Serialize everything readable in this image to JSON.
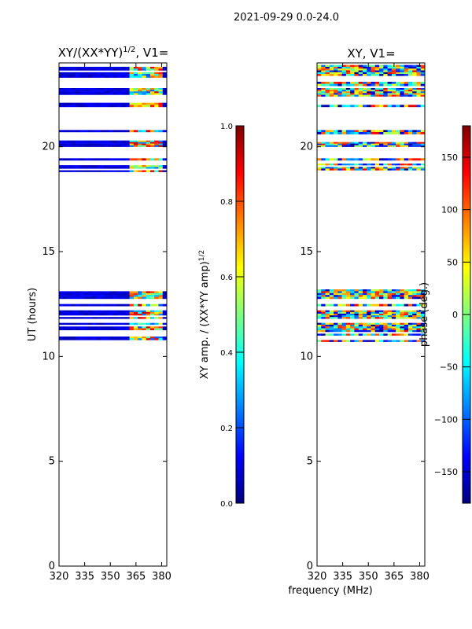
{
  "suptitle": "2021-09-29 0.0-24.0",
  "colors": {
    "jet": [
      "#00007f",
      "#0000ff",
      "#007fff",
      "#00ffff",
      "#7fff7f",
      "#ffff00",
      "#ff7f00",
      "#ff0000",
      "#7f0000"
    ],
    "axis": "#000000",
    "background": "#ffffff"
  },
  "chart_data": [
    {
      "type": "heatmap",
      "panel": "left",
      "title_main": "XY/(XX*YY)",
      "title_sup": "1/2",
      "title_tail": ", V1=",
      "xlabel": "",
      "ylabel": "UT (hours)",
      "xlim": [
        320,
        383
      ],
      "ylim": [
        0,
        24
      ],
      "xticks": [
        320,
        335,
        350,
        365,
        380
      ],
      "yticks": [
        0,
        5,
        10,
        15,
        20
      ],
      "colorbar": {
        "label_main": "XY amp. / (XX*YY amp)",
        "label_sup": "1/2",
        "range": [
          0.0,
          1.0
        ],
        "ticks": [
          "0.0",
          "0.2",
          "0.4",
          "0.6",
          "0.8",
          "1.0"
        ],
        "tick_values": [
          0.0,
          0.2,
          0.4,
          0.6,
          0.8,
          1.0
        ]
      },
      "data_bands_ut": [
        [
          23.3,
          23.9
        ],
        [
          22.9,
          23.1
        ],
        [
          22.4,
          22.8
        ],
        [
          21.9,
          22.1
        ],
        [
          20.6,
          20.8
        ],
        [
          20.0,
          20.3
        ],
        [
          19.35,
          19.45
        ],
        [
          18.8,
          19.2
        ],
        [
          12.75,
          13.2
        ],
        [
          12.4,
          12.6
        ],
        [
          11.8,
          12.2
        ],
        [
          11.0,
          11.6
        ],
        [
          10.7,
          10.95
        ]
      ],
      "baseline_value": 0.05,
      "active_freq_range_mhz": [
        360,
        380
      ],
      "active_value_range": [
        0.2,
        0.95
      ]
    },
    {
      "type": "heatmap",
      "panel": "right",
      "title_main": "XY, V1=",
      "xlabel": "frequency (MHz)",
      "ylabel": "",
      "xlim": [
        320,
        383
      ],
      "ylim": [
        0,
        24
      ],
      "xticks": [
        320,
        335,
        350,
        365,
        380
      ],
      "yticks": [
        0,
        5,
        10,
        15,
        20
      ],
      "colorbar": {
        "label_main": "phase (deg.)",
        "range": [
          -180,
          180
        ],
        "ticks": [
          "150",
          "100",
          "50",
          "0",
          "−50",
          "−100",
          "−150"
        ],
        "tick_values": [
          150,
          100,
          50,
          0,
          -50,
          -100,
          -150
        ]
      },
      "data_bands_ut": [
        [
          23.3,
          23.9
        ],
        [
          22.9,
          23.1
        ],
        [
          22.4,
          22.8
        ],
        [
          21.9,
          22.1
        ],
        [
          20.6,
          20.8
        ],
        [
          20.0,
          20.3
        ],
        [
          19.35,
          19.45
        ],
        [
          18.8,
          19.2
        ],
        [
          12.75,
          13.2
        ],
        [
          12.4,
          12.6
        ],
        [
          11.8,
          12.2
        ],
        [
          11.0,
          11.6
        ],
        [
          10.7,
          10.95
        ]
      ],
      "value_range_deg": [
        -180,
        180
      ]
    }
  ]
}
